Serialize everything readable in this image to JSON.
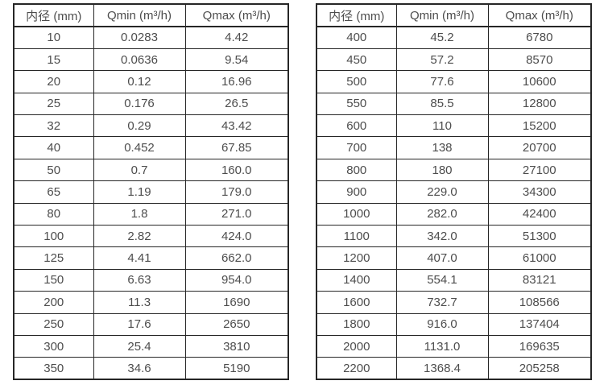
{
  "colors": {
    "background": "#ffffff",
    "text": "#4d4d4d",
    "border": "#262626"
  },
  "tables": [
    {
      "name": "flow-table-small-diameters",
      "headers": [
        "内径 (mm)",
        "Qmin (m³/h)",
        "Qmax (m³/h)"
      ],
      "rows": [
        [
          "10",
          "0.0283",
          "4.42"
        ],
        [
          "15",
          "0.0636",
          "9.54"
        ],
        [
          "20",
          "0.12",
          "16.96"
        ],
        [
          "25",
          "0.176",
          "26.5"
        ],
        [
          "32",
          "0.29",
          "43.42"
        ],
        [
          "40",
          "0.452",
          "67.85"
        ],
        [
          "50",
          "0.7",
          "160.0"
        ],
        [
          "65",
          "1.19",
          "179.0"
        ],
        [
          "80",
          "1.8",
          "271.0"
        ],
        [
          "100",
          "2.82",
          "424.0"
        ],
        [
          "125",
          "4.41",
          "662.0"
        ],
        [
          "150",
          "6.63",
          "954.0"
        ],
        [
          "200",
          "11.3",
          "1690"
        ],
        [
          "250",
          "17.6",
          "2650"
        ],
        [
          "300",
          "25.4",
          "3810"
        ],
        [
          "350",
          "34.6",
          "5190"
        ]
      ]
    },
    {
      "name": "flow-table-large-diameters",
      "headers": [
        "内径 (mm)",
        "Qmin (m³/h)",
        "Qmax (m³/h)"
      ],
      "rows": [
        [
          "400",
          "45.2",
          "6780"
        ],
        [
          "450",
          "57.2",
          "8570"
        ],
        [
          "500",
          "77.6",
          "10600"
        ],
        [
          "550",
          "85.5",
          "12800"
        ],
        [
          "600",
          "110",
          "15200"
        ],
        [
          "700",
          "138",
          "20700"
        ],
        [
          "800",
          "180",
          "27100"
        ],
        [
          "900",
          "229.0",
          "34300"
        ],
        [
          "1000",
          "282.0",
          "42400"
        ],
        [
          "1100",
          "342.0",
          "51300"
        ],
        [
          "1200",
          "407.0",
          "61000"
        ],
        [
          "1400",
          "554.1",
          "83121"
        ],
        [
          "1600",
          "732.7",
          "108566"
        ],
        [
          "1800",
          "916.0",
          "137404"
        ],
        [
          "2000",
          "1131.0",
          "169635"
        ],
        [
          "2200",
          "1368.4",
          "205258"
        ]
      ]
    }
  ],
  "chart_data": {
    "type": "table",
    "title": "",
    "tables": [
      {
        "columns": [
          "内径 (mm)",
          "Qmin (m³/h)",
          "Qmax (m³/h)"
        ],
        "diameter_mm": [
          10,
          15,
          20,
          25,
          32,
          40,
          50,
          65,
          80,
          100,
          125,
          150,
          200,
          250,
          300,
          350
        ],
        "qmin": [
          0.0283,
          0.0636,
          0.12,
          0.176,
          0.29,
          0.452,
          0.7,
          1.19,
          1.8,
          2.82,
          4.41,
          6.63,
          11.3,
          17.6,
          25.4,
          34.6
        ],
        "qmax": [
          4.42,
          9.54,
          16.96,
          26.5,
          43.42,
          67.85,
          160.0,
          179.0,
          271.0,
          424.0,
          662.0,
          954.0,
          1690,
          2650,
          3810,
          5190
        ]
      },
      {
        "columns": [
          "内径 (mm)",
          "Qmin (m³/h)",
          "Qmax (m³/h)"
        ],
        "diameter_mm": [
          400,
          450,
          500,
          550,
          600,
          700,
          800,
          900,
          1000,
          1100,
          1200,
          1400,
          1600,
          1800,
          2000,
          2200
        ],
        "qmin": [
          45.2,
          57.2,
          77.6,
          85.5,
          110,
          138,
          180,
          229.0,
          282.0,
          342.0,
          407.0,
          554.1,
          732.7,
          916.0,
          1131.0,
          1368.4
        ],
        "qmax": [
          6780,
          8570,
          10600,
          12800,
          15200,
          20700,
          27100,
          34300,
          42400,
          51300,
          61000,
          83121,
          108566,
          137404,
          169635,
          205258
        ]
      }
    ]
  }
}
